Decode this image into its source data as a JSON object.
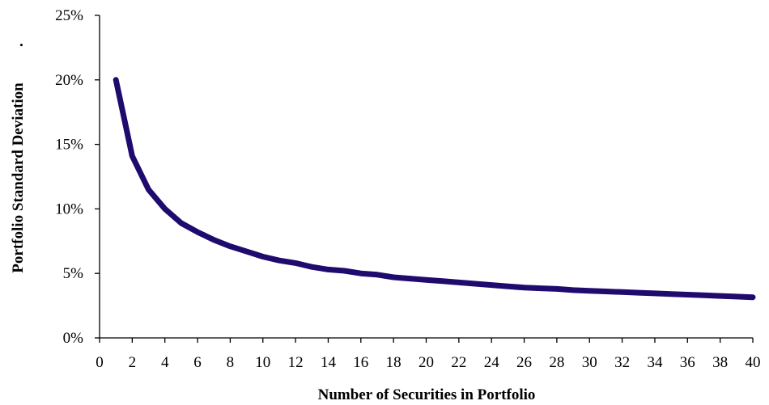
{
  "chart_data": {
    "type": "line",
    "title": "",
    "xlabel": "Number of Securities in Portfolio",
    "ylabel": "Portfolio Standard Deviation",
    "ylabel_suffix": ".",
    "xlim": [
      0,
      40
    ],
    "ylim": [
      0,
      25
    ],
    "x_ticks": [
      0,
      2,
      4,
      6,
      8,
      10,
      12,
      14,
      16,
      18,
      20,
      22,
      24,
      26,
      28,
      30,
      32,
      34,
      36,
      38,
      40
    ],
    "y_ticks": [
      0,
      5,
      10,
      15,
      20,
      25
    ],
    "y_tick_labels": [
      "0%",
      "5%",
      "10%",
      "15%",
      "20%",
      "25%"
    ],
    "grid": false,
    "legend": "none",
    "series": [
      {
        "color": "#1f0a6e",
        "x": [
          1,
          2,
          3,
          4,
          5,
          6,
          7,
          8,
          9,
          10,
          11,
          12,
          13,
          14,
          15,
          16,
          17,
          18,
          19,
          20,
          21,
          22,
          23,
          24,
          25,
          26,
          27,
          28,
          29,
          30,
          31,
          32,
          33,
          34,
          35,
          36,
          37,
          38,
          39,
          40
        ],
        "y": [
          20.0,
          14.1,
          11.5,
          10.0,
          8.9,
          8.2,
          7.6,
          7.1,
          6.7,
          6.3,
          6.0,
          5.8,
          5.5,
          5.3,
          5.2,
          5.0,
          4.9,
          4.7,
          4.6,
          4.5,
          4.4,
          4.3,
          4.2,
          4.1,
          4.0,
          3.9,
          3.85,
          3.8,
          3.7,
          3.65,
          3.6,
          3.55,
          3.5,
          3.45,
          3.4,
          3.35,
          3.3,
          3.25,
          3.2,
          3.15
        ]
      }
    ]
  }
}
